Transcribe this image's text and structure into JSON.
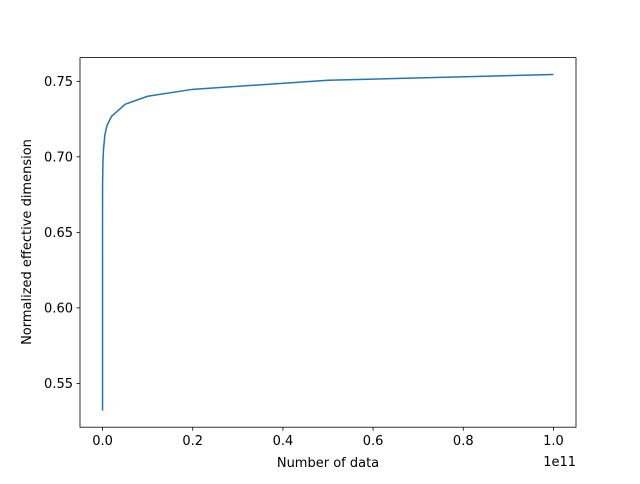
{
  "chart_data": {
    "type": "line",
    "xlabel": "Number of data",
    "ylabel": "Normalized effective dimension",
    "x_offset_label": "1e11",
    "x": [
      1000,
      10000,
      100000,
      1000000,
      10000000,
      100000000,
      200000000,
      500000000,
      1000000000,
      2000000000,
      5000000000,
      10000000000,
      20000000000,
      50000000000,
      100000000000
    ],
    "series": [
      {
        "name": "effective dimension",
        "color": "#1f77b4",
        "values": [
          0.532,
          0.585,
          0.63,
          0.662,
          0.683,
          0.6977,
          0.7043,
          0.7142,
          0.7209,
          0.7268,
          0.7348,
          0.7401,
          0.7447,
          0.7507,
          0.7545
        ]
      }
    ],
    "xlim": [
      -5000000000,
      105000000000
    ],
    "xticks": [
      {
        "value": 0,
        "label": "0.0"
      },
      {
        "value": 20000000000,
        "label": "0.2"
      },
      {
        "value": 40000000000,
        "label": "0.4"
      },
      {
        "value": 60000000000,
        "label": "0.6"
      },
      {
        "value": 80000000000,
        "label": "0.8"
      },
      {
        "value": 100000000000,
        "label": "1.0"
      }
    ],
    "ylim": [
      0.521,
      0.7657
    ],
    "yticks": [
      0.55,
      {
        "value": 0.6,
        "label": "0.60"
      },
      0.65,
      {
        "value": 0.7,
        "label": "0.70"
      },
      0.75
    ],
    "grid": false
  }
}
